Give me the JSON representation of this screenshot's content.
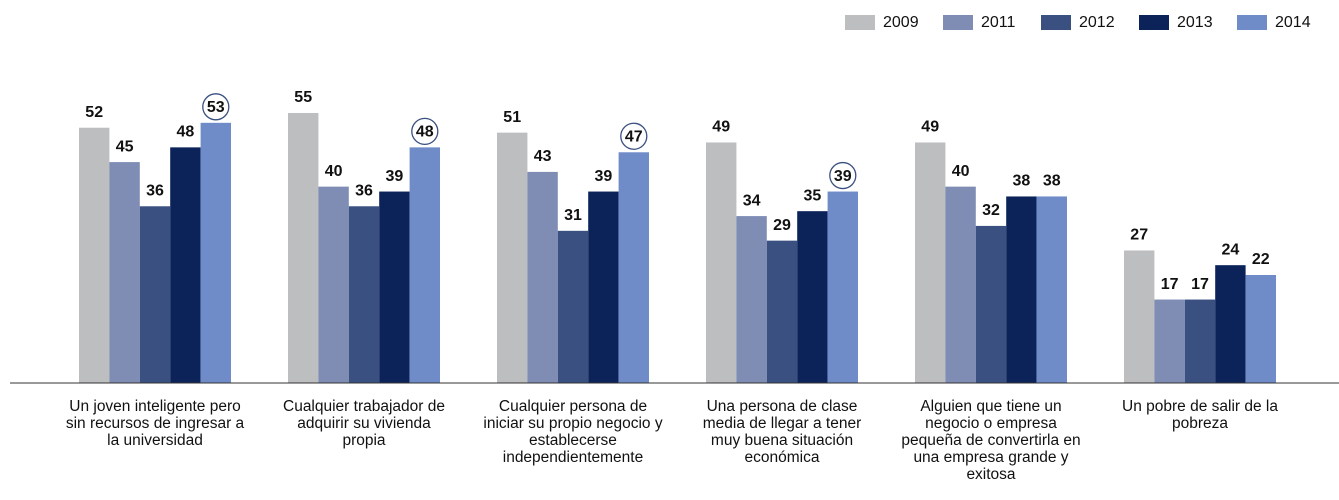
{
  "chart_data": {
    "type": "bar",
    "categories": [
      "Un joven inteligente pero sin recursos de ingresar a la universidad",
      "Cualquier trabajador de adquirir su vivienda propia",
      "Cualquier persona de iniciar su propio negocio y establecerse independientemente",
      "Una persona de clase media de llegar a tener muy buena situación económica",
      "Alguien que tiene un negocio o empresa pequeña de convertirla en una empresa grande y exitosa",
      "Un pobre de salir de la pobreza"
    ],
    "series": [
      {
        "name": "2009",
        "color": "#bcbec0",
        "values": [
          52,
          55,
          51,
          49,
          49,
          27
        ]
      },
      {
        "name": "2011",
        "color": "#7f8db5",
        "values": [
          45,
          40,
          43,
          34,
          40,
          17
        ]
      },
      {
        "name": "2012",
        "color": "#3a5080",
        "values": [
          36,
          36,
          31,
          29,
          32,
          17
        ]
      },
      {
        "name": "2013",
        "color": "#0b2359",
        "values": [
          48,
          39,
          39,
          35,
          38,
          24
        ]
      },
      {
        "name": "2014",
        "color": "#6f8cc9",
        "values": [
          53,
          48,
          47,
          39,
          38,
          22
        ],
        "circled": [
          true,
          true,
          true,
          true,
          false,
          false
        ]
      }
    ],
    "legend": "top-right"
  }
}
